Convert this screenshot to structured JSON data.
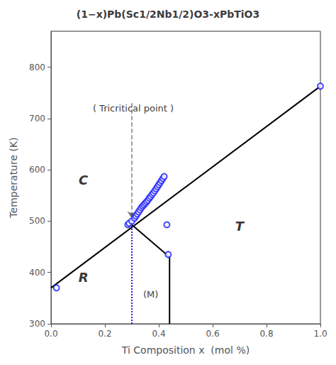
{
  "chart_data": {
    "type": "line",
    "title": "(1−x)Pb(Sc1/2Nb1/2)O3-xPbTiO3",
    "xlabel": "Ti Composition x  (mol %)",
    "ylabel": "Temperature (K)",
    "xlim": [
      0.0,
      1.0
    ],
    "ylim": [
      300,
      870
    ],
    "xticks": [
      {
        "value": 0.0,
        "label": "0.0"
      },
      0.2,
      0.4,
      0.6,
      0.8,
      {
        "value": 1.0,
        "label": "1.0"
      }
    ],
    "yticks": [
      300,
      400,
      500,
      600,
      700,
      800
    ],
    "grid": false,
    "series": [
      {
        "type": "line",
        "color": "#000000",
        "line_style": "solid",
        "x": [
          0.0,
          1.0
        ],
        "values": [
          370,
          763
        ]
      },
      {
        "type": "line",
        "color": "#000000",
        "line_style": "dashed",
        "marker": "arrow",
        "x": [
          0.3,
          0.3
        ],
        "values": [
          730,
          505
        ]
      },
      {
        "type": "line",
        "color": "#1a1aff",
        "line_style": "dotted",
        "x": [
          0.3,
          0.3
        ],
        "values": [
          300,
          493
        ]
      },
      {
        "type": "line",
        "color": "#000000",
        "line_style": "solid",
        "x": [
          0.3,
          0.44
        ],
        "values": [
          493,
          430
        ]
      },
      {
        "type": "line",
        "color": "#000000",
        "line_style": "solid",
        "x": [
          0.44,
          0.44
        ],
        "values": [
          300,
          430
        ]
      },
      {
        "type": "scatter",
        "color": "#1a1aff",
        "marker": "circle",
        "x": [
          0.02,
          0.285,
          0.29,
          0.3,
          0.31,
          0.315,
          0.32,
          0.325,
          0.33,
          0.335,
          0.34,
          0.345,
          0.35,
          0.355,
          0.36,
          0.365,
          0.37,
          0.375,
          0.38,
          0.385,
          0.39,
          0.395,
          0.4,
          0.405,
          0.41,
          0.415,
          0.42,
          1.0
        ],
        "values": [
          370,
          493,
          496,
          500,
          506,
          510,
          514,
          518,
          522,
          526,
          529,
          532,
          535,
          538,
          541,
          545,
          548,
          552,
          555,
          559,
          563,
          567,
          571,
          575,
          579,
          583,
          587,
          763
        ]
      },
      {
        "type": "scatter",
        "color": "#1a1aff",
        "marker": "circle",
        "x": [
          0.43,
          0.435
        ],
        "values": [
          493,
          435
        ]
      }
    ],
    "annotations": [
      {
        "text": "C",
        "x": 0.12,
        "y": 580
      },
      {
        "text": "R",
        "x": 0.12,
        "y": 390
      },
      {
        "text": "T",
        "x": 0.7,
        "y": 490
      },
      {
        "text": "(M)",
        "x": 0.37,
        "y": 358
      },
      {
        "text": "( Tricritical point )",
        "x": 0.155,
        "y": 720
      }
    ]
  }
}
